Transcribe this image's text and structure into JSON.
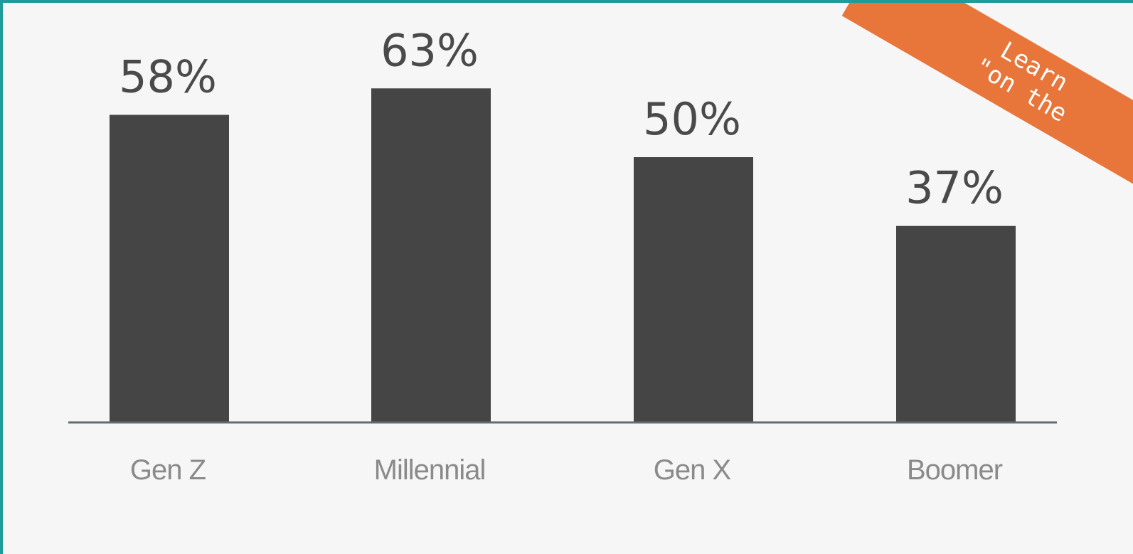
{
  "chart_data": {
    "type": "bar",
    "categories": [
      "Gen Z",
      "Millennial",
      "Gen X",
      "Boomer"
    ],
    "values": [
      58,
      63,
      50,
      37
    ],
    "value_labels": [
      "58%",
      "63%",
      "50%",
      "37%"
    ],
    "ylim": [
      0,
      100
    ],
    "grid": false,
    "legend": "none",
    "bar_color": "#454545",
    "axis_color": "#5f6d70"
  },
  "ribbon": {
    "line1": "Learn",
    "line2": "\"on the",
    "color": "#e8763a"
  },
  "frame_color": "#1f9c99"
}
